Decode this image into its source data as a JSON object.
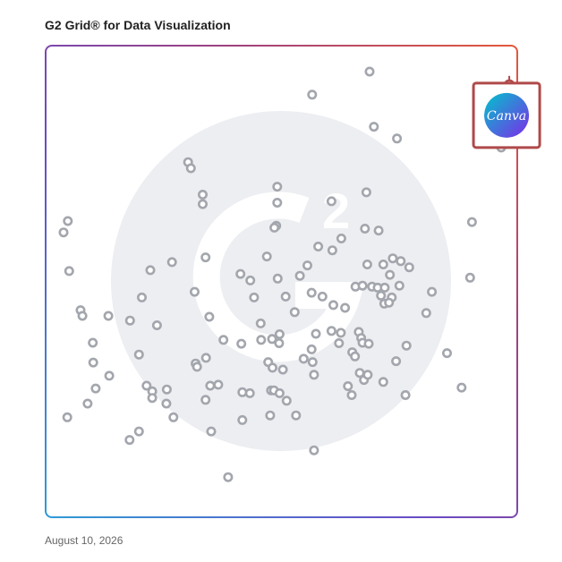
{
  "title": "G2 Grid® for Data Visualization",
  "date": "August 10, 2026",
  "highlight": {
    "label": "Canva",
    "colors": [
      "#00c4cc",
      "#7d2ae8"
    ]
  },
  "colors": {
    "dot": "#a3a6ad",
    "highlight_frame": "#b04a4a",
    "watermark": "#eceef1",
    "border_gradient": [
      "#2f9bd6",
      "#6a4bc4",
      "#a0427e",
      "#e4583a"
    ]
  },
  "chart_data": {
    "type": "scatter",
    "title": "G2 Grid® for Data Visualization",
    "xlabel": "",
    "ylabel": "",
    "xlim": [
      0,
      100
    ],
    "ylim": [
      0,
      100
    ],
    "grid": "quadrants",
    "points": [
      [
        68.7,
        94.5
      ],
      [
        56.5,
        89.6
      ],
      [
        69.6,
        82.8
      ],
      [
        74.5,
        80.3
      ],
      [
        30.2,
        75.3
      ],
      [
        30.8,
        74.0
      ],
      [
        33.3,
        68.4
      ],
      [
        33.3,
        66.4
      ],
      [
        49.1,
        70.1
      ],
      [
        49.1,
        66.7
      ],
      [
        68.0,
        68.9
      ],
      [
        60.6,
        67.0
      ],
      [
        4.7,
        62.8
      ],
      [
        3.8,
        60.4
      ],
      [
        48.9,
        61.8
      ],
      [
        48.5,
        61.4
      ],
      [
        67.7,
        61.2
      ],
      [
        70.6,
        60.8
      ],
      [
        62.7,
        59.1
      ],
      [
        60.8,
        56.6
      ],
      [
        57.8,
        57.4
      ],
      [
        90.4,
        62.6
      ],
      [
        33.9,
        55.1
      ],
      [
        46.9,
        55.3
      ],
      [
        26.8,
        54.1
      ],
      [
        73.6,
        54.9
      ],
      [
        75.3,
        54.3
      ],
      [
        5.0,
        52.2
      ],
      [
        22.2,
        52.4
      ],
      [
        68.2,
        53.6
      ],
      [
        71.6,
        53.6
      ],
      [
        77.1,
        53.0
      ],
      [
        55.5,
        53.4
      ],
      [
        41.3,
        51.6
      ],
      [
        53.9,
        51.2
      ],
      [
        49.2,
        50.6
      ],
      [
        43.4,
        50.2
      ],
      [
        73.0,
        51.4
      ],
      [
        90.0,
        50.8
      ],
      [
        65.7,
        48.9
      ],
      [
        67.2,
        49.1
      ],
      [
        69.2,
        48.9
      ],
      [
        70.4,
        48.7
      ],
      [
        71.9,
        48.7
      ],
      [
        75.0,
        49.1
      ],
      [
        81.9,
        47.8
      ],
      [
        31.6,
        47.8
      ],
      [
        20.4,
        46.6
      ],
      [
        50.9,
        46.8
      ],
      [
        44.2,
        46.6
      ],
      [
        56.4,
        47.6
      ],
      [
        58.7,
        46.8
      ],
      [
        71.1,
        47.0
      ],
      [
        73.4,
        46.6
      ],
      [
        61.0,
        45.0
      ],
      [
        63.5,
        44.4
      ],
      [
        71.8,
        45.3
      ],
      [
        72.8,
        45.5
      ],
      [
        7.4,
        43.9
      ],
      [
        7.8,
        42.7
      ],
      [
        13.3,
        42.7
      ],
      [
        34.7,
        42.5
      ],
      [
        52.8,
        43.5
      ],
      [
        80.7,
        43.3
      ],
      [
        17.9,
        41.7
      ],
      [
        23.6,
        40.7
      ],
      [
        45.6,
        41.1
      ],
      [
        57.3,
        38.9
      ],
      [
        60.6,
        39.5
      ],
      [
        62.6,
        39.1
      ],
      [
        66.4,
        39.3
      ],
      [
        49.6,
        38.8
      ],
      [
        48.0,
        37.8
      ],
      [
        66.9,
        38.0
      ],
      [
        37.7,
        37.6
      ],
      [
        45.7,
        37.6
      ],
      [
        10.0,
        37.0
      ],
      [
        41.5,
        36.8
      ],
      [
        49.5,
        36.9
      ],
      [
        62.2,
        36.9
      ],
      [
        67.2,
        37.0
      ],
      [
        68.5,
        36.8
      ],
      [
        76.5,
        36.4
      ],
      [
        56.4,
        35.6
      ],
      [
        65.0,
        35.0
      ],
      [
        19.8,
        34.5
      ],
      [
        34.0,
        33.8
      ],
      [
        47.2,
        32.9
      ],
      [
        54.7,
        33.6
      ],
      [
        56.6,
        32.9
      ],
      [
        65.6,
        34.1
      ],
      [
        85.1,
        34.8
      ],
      [
        74.3,
        33.1
      ],
      [
        10.1,
        32.8
      ],
      [
        31.8,
        32.6
      ],
      [
        32.1,
        31.9
      ],
      [
        48.1,
        31.7
      ],
      [
        50.3,
        31.3
      ],
      [
        66.6,
        30.6
      ],
      [
        13.5,
        30.0
      ],
      [
        56.9,
        30.2
      ],
      [
        67.5,
        29.1
      ],
      [
        68.3,
        30.2
      ],
      [
        71.6,
        28.7
      ],
      [
        21.4,
        27.9
      ],
      [
        34.9,
        27.9
      ],
      [
        36.6,
        28.1
      ],
      [
        64.1,
        27.8
      ],
      [
        88.2,
        27.5
      ],
      [
        10.6,
        27.3
      ],
      [
        25.7,
        27.1
      ],
      [
        22.6,
        26.7
      ],
      [
        41.7,
        26.5
      ],
      [
        43.3,
        26.3
      ],
      [
        47.8,
        26.9
      ],
      [
        48.4,
        26.9
      ],
      [
        49.6,
        26.3
      ],
      [
        64.9,
        25.9
      ],
      [
        76.3,
        25.9
      ],
      [
        22.6,
        25.3
      ],
      [
        51.1,
        24.7
      ],
      [
        25.6,
        24.1
      ],
      [
        33.9,
        24.9
      ],
      [
        8.9,
        24.1
      ],
      [
        47.6,
        21.6
      ],
      [
        53.1,
        21.6
      ],
      [
        27.1,
        21.2
      ],
      [
        4.6,
        21.2
      ],
      [
        41.7,
        20.6
      ],
      [
        35.1,
        18.2
      ],
      [
        19.8,
        18.2
      ],
      [
        17.8,
        16.4
      ],
      [
        56.9,
        14.2
      ],
      [
        38.7,
        8.5
      ]
    ],
    "highlight_point": {
      "label": "Canva",
      "x": 96.6,
      "y": 78.4
    }
  }
}
